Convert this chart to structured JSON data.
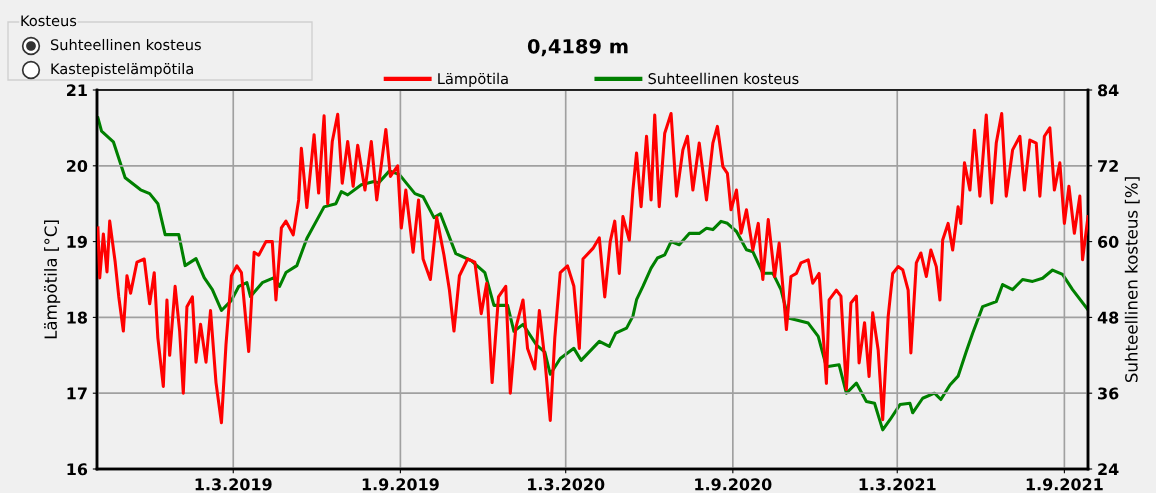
{
  "chart_data": {
    "type": "line",
    "title": "0,4189 m",
    "ylabel": "Lämpötila [°C]",
    "y2label": "Suhteellinen kosteus [%]",
    "annotations": [
      "Kosteus",
      "Suhteellinen kosteus",
      "Kastepistelämpötila"
    ],
    "xlim": [
      "2018-10-02",
      "2021-09-27"
    ],
    "xticks": [
      {
        "value": "2019-03-01",
        "label": "1.3.2019"
      },
      {
        "value": "2019-09-01",
        "label": "1.9.2019"
      },
      {
        "value": "2020-03-01",
        "label": "1.3.2020"
      },
      {
        "value": "2020-09-01",
        "label": "1.9.2020"
      },
      {
        "value": "2021-03-01",
        "label": "1.3.2021"
      },
      {
        "value": "2021-09-01",
        "label": "1.9.2021"
      }
    ],
    "ylim": [
      16,
      21
    ],
    "yticks": [
      16,
      17,
      18,
      19,
      20,
      21
    ],
    "y2lim": [
      24,
      84
    ],
    "y2ticks": [
      24,
      36,
      48,
      60,
      72,
      84
    ],
    "grid": true,
    "legend": "top",
    "marker": "none",
    "line_style": "solid",
    "series": [
      {
        "name": "Lämpötila",
        "color": "#ff0000",
        "x": [
          "2018-10-03",
          "2018-10-05",
          "2018-10-09",
          "2018-10-13",
          "2018-10-16",
          "2018-10-22",
          "2018-10-26",
          "2018-10-31",
          "2018-11-04",
          "2018-11-08",
          "2018-11-15",
          "2018-11-23",
          "2018-11-29",
          "2018-12-04",
          "2018-12-08",
          "2018-12-14",
          "2018-12-18",
          "2018-12-21",
          "2018-12-27",
          "2019-01-01",
          "2019-01-05",
          "2019-01-09",
          "2019-01-15",
          "2019-01-19",
          "2019-01-24",
          "2019-01-30",
          "2019-02-04",
          "2019-02-10",
          "2019-02-16",
          "2019-02-21",
          "2019-02-27",
          "2019-03-05",
          "2019-03-10",
          "2019-03-18",
          "2019-03-24",
          "2019-03-29",
          "2019-04-06",
          "2019-04-13",
          "2019-04-17",
          "2019-04-23",
          "2019-04-28",
          "2019-05-06",
          "2019-05-12",
          "2019-05-15",
          "2019-05-21",
          "2019-05-29",
          "2019-06-03",
          "2019-06-09",
          "2019-06-13",
          "2019-06-18",
          "2019-06-24",
          "2019-06-29",
          "2019-07-05",
          "2019-07-11",
          "2019-07-16",
          "2019-07-24",
          "2019-07-31",
          "2019-08-06",
          "2019-08-16",
          "2019-08-21",
          "2019-08-29",
          "2019-09-02",
          "2019-09-07",
          "2019-09-15",
          "2019-09-21",
          "2019-09-26",
          "2019-10-04",
          "2019-10-11",
          "2019-10-19",
          "2019-10-25",
          "2019-10-30",
          "2019-11-05",
          "2019-11-14",
          "2019-11-22",
          "2019-11-29",
          "2019-12-05",
          "2019-12-11",
          "2019-12-18",
          "2019-12-26",
          "2019-12-31",
          "2020-01-06",
          "2020-01-14",
          "2020-01-19",
          "2020-01-27",
          "2020-02-01",
          "2020-02-07",
          "2020-02-13",
          "2020-02-18",
          "2020-02-24",
          "2020-03-03",
          "2020-03-10",
          "2020-03-16",
          "2020-03-20",
          "2020-03-31",
          "2020-04-07",
          "2020-04-13",
          "2020-04-19",
          "2020-04-24",
          "2020-04-29",
          "2020-05-03",
          "2020-05-10",
          "2020-05-14",
          "2020-05-18",
          "2020-05-23",
          "2020-05-29",
          "2020-06-03",
          "2020-06-07",
          "2020-06-12",
          "2020-06-18",
          "2020-06-25",
          "2020-07-01",
          "2020-07-08",
          "2020-07-13",
          "2020-07-19",
          "2020-07-26",
          "2020-08-03",
          "2020-08-10",
          "2020-08-15",
          "2020-08-21",
          "2020-08-26",
          "2020-08-30",
          "2020-09-05",
          "2020-09-10",
          "2020-09-16",
          "2020-09-23",
          "2020-09-29",
          "2020-10-04",
          "2020-10-10",
          "2020-10-17",
          "2020-10-22",
          "2020-10-30",
          "2020-11-04",
          "2020-11-10",
          "2020-11-15",
          "2020-11-23",
          "2020-11-28",
          "2020-12-05",
          "2020-12-13",
          "2020-12-16",
          "2020-12-24",
          "2020-12-29",
          "2021-01-04",
          "2021-01-09",
          "2021-01-15",
          "2021-01-18",
          "2021-01-24",
          "2021-01-29",
          "2021-02-02",
          "2021-02-08",
          "2021-02-13",
          "2021-02-19",
          "2021-02-24",
          "2021-03-02",
          "2021-03-07",
          "2021-03-13",
          "2021-03-16",
          "2021-03-22",
          "2021-03-27",
          "2021-04-02",
          "2021-04-07",
          "2021-04-13",
          "2021-04-17",
          "2021-04-20",
          "2021-04-26",
          "2021-05-01",
          "2021-05-07",
          "2021-05-10",
          "2021-05-14",
          "2021-05-20",
          "2021-05-25",
          "2021-05-31",
          "2021-06-07",
          "2021-06-13",
          "2021-06-18",
          "2021-06-24",
          "2021-06-29",
          "2021-07-06",
          "2021-07-14",
          "2021-07-19",
          "2021-07-25",
          "2021-08-01",
          "2021-08-05",
          "2021-08-10",
          "2021-08-16",
          "2021-08-21",
          "2021-08-27",
          "2021-09-01",
          "2021-09-06",
          "2021-09-12",
          "2021-09-18",
          "2021-09-21",
          "2021-09-27"
        ],
        "values": [
          19.18,
          18.52,
          19.1,
          18.6,
          19.27,
          18.73,
          18.27,
          17.82,
          18.55,
          18.32,
          18.73,
          18.77,
          18.18,
          18.59,
          17.73,
          17.09,
          18.23,
          17.5,
          18.41,
          17.82,
          17.0,
          18.14,
          18.27,
          17.41,
          17.91,
          17.41,
          18.09,
          17.14,
          16.61,
          17.64,
          18.55,
          18.68,
          18.59,
          17.55,
          18.86,
          18.82,
          19.0,
          19.0,
          18.23,
          19.18,
          19.27,
          19.09,
          19.55,
          20.23,
          19.45,
          20.41,
          19.64,
          20.66,
          19.5,
          20.32,
          20.68,
          19.77,
          20.32,
          19.73,
          20.27,
          19.68,
          20.32,
          19.55,
          20.48,
          19.86,
          20.0,
          19.18,
          19.68,
          18.86,
          19.55,
          18.77,
          18.5,
          19.32,
          18.82,
          18.36,
          17.82,
          18.55,
          18.77,
          18.73,
          18.05,
          18.45,
          17.14,
          18.27,
          18.41,
          17.0,
          17.86,
          18.23,
          17.59,
          17.32,
          18.09,
          17.45,
          16.64,
          17.73,
          18.59,
          18.68,
          18.41,
          17.59,
          18.77,
          18.91,
          19.05,
          18.27,
          19.0,
          19.27,
          18.58,
          19.33,
          19.02,
          19.68,
          20.17,
          19.46,
          20.39,
          19.55,
          20.67,
          19.46,
          20.43,
          20.69,
          19.6,
          20.21,
          20.39,
          19.68,
          20.3,
          19.55,
          20.3,
          20.52,
          19.99,
          19.9,
          19.42,
          19.68,
          19.11,
          19.42,
          18.89,
          19.24,
          18.5,
          19.29,
          18.54,
          18.98,
          17.84,
          18.54,
          18.58,
          18.72,
          18.76,
          18.45,
          18.58,
          17.13,
          18.23,
          18.36,
          18.28,
          17.05,
          18.19,
          18.28,
          17.4,
          17.93,
          17.22,
          18.06,
          17.57,
          16.65,
          18.01,
          18.58,
          18.67,
          18.63,
          18.36,
          17.53,
          18.72,
          18.85,
          18.54,
          18.89,
          18.67,
          18.23,
          19.02,
          19.24,
          18.89,
          19.46,
          19.24,
          20.04,
          19.68,
          20.47,
          19.6,
          20.67,
          19.51,
          20.3,
          20.69,
          19.6,
          20.21,
          20.39,
          19.68,
          20.34,
          20.3,
          19.6,
          20.39,
          20.5,
          19.68,
          20.04,
          19.24,
          19.73,
          19.11,
          19.6,
          18.76,
          19.33
        ]
      },
      {
        "name": "Suhteellinen kosteus",
        "color": "#008000",
        "axis": "y2",
        "x": [
          "2018-10-03",
          "2018-10-07",
          "2018-10-20",
          "2018-11-02",
          "2018-11-19",
          "2018-11-29",
          "2018-12-08",
          "2018-12-16",
          "2018-12-31",
          "2019-01-07",
          "2019-01-19",
          "2019-01-28",
          "2019-02-06",
          "2019-02-16",
          "2019-02-27",
          "2019-03-07",
          "2019-03-16",
          "2019-03-20",
          "2019-04-02",
          "2019-04-15",
          "2019-04-21",
          "2019-04-28",
          "2019-05-10",
          "2019-05-21",
          "2019-06-09",
          "2019-06-22",
          "2019-06-28",
          "2019-07-05",
          "2019-07-20",
          "2019-08-03",
          "2019-08-08",
          "2019-08-20",
          "2019-08-31",
          "2019-09-17",
          "2019-09-26",
          "2019-10-08",
          "2019-10-15",
          "2019-11-01",
          "2019-11-18",
          "2019-12-03",
          "2019-12-13",
          "2019-12-28",
          "2020-01-04",
          "2020-01-14",
          "2020-01-29",
          "2020-02-07",
          "2020-02-13",
          "2020-02-24",
          "2020-03-10",
          "2020-03-18",
          "2020-04-07",
          "2020-04-18",
          "2020-04-25",
          "2020-05-07",
          "2020-05-14",
          "2020-05-18",
          "2020-05-25",
          "2020-06-03",
          "2020-06-10",
          "2020-06-18",
          "2020-06-25",
          "2020-07-04",
          "2020-07-15",
          "2020-07-26",
          "2020-08-03",
          "2020-08-10",
          "2020-08-19",
          "2020-08-26",
          "2020-09-05",
          "2020-09-16",
          "2020-09-23",
          "2020-10-04",
          "2020-10-15",
          "2020-10-24",
          "2020-11-01",
          "2020-11-10",
          "2020-11-23",
          "2020-12-04",
          "2020-12-13",
          "2020-12-27",
          "2021-01-04",
          "2021-01-15",
          "2021-01-26",
          "2021-02-04",
          "2021-02-13",
          "2021-02-21",
          "2021-03-04",
          "2021-03-15",
          "2021-03-18",
          "2021-03-29",
          "2021-04-11",
          "2021-04-18",
          "2021-04-28",
          "2021-05-07",
          "2021-05-16",
          "2021-05-23",
          "2021-06-03",
          "2021-06-18",
          "2021-06-25",
          "2021-07-06",
          "2021-07-17",
          "2021-07-28",
          "2021-08-08",
          "2021-08-19",
          "2021-08-30",
          "2021-09-10",
          "2021-09-27"
        ],
        "values": [
          79.6,
          77.5,
          75.8,
          70.1,
          68.2,
          67.6,
          66.0,
          61.1,
          61.1,
          56.2,
          57.3,
          54.3,
          52.4,
          49.1,
          50.7,
          52.9,
          53.5,
          51.3,
          53.5,
          54.3,
          52.9,
          55.1,
          56.2,
          60.5,
          65.5,
          66.0,
          67.9,
          67.4,
          69.0,
          69.5,
          69.3,
          71.2,
          70.6,
          67.6,
          67.1,
          63.8,
          64.4,
          58.1,
          57.0,
          55.1,
          49.9,
          49.9,
          45.8,
          46.9,
          43.6,
          42.5,
          39.0,
          41.5,
          43.1,
          41.2,
          44.2,
          43.4,
          45.5,
          46.3,
          48.2,
          50.8,
          52.9,
          55.8,
          57.4,
          57.9,
          60.0,
          59.5,
          61.3,
          61.3,
          62.1,
          61.9,
          63.2,
          62.9,
          61.6,
          58.7,
          58.4,
          55.0,
          55.0,
          52.4,
          47.9,
          47.6,
          47.1,
          45.0,
          40.2,
          40.5,
          36.0,
          37.6,
          34.7,
          34.4,
          30.2,
          31.8,
          34.2,
          34.4,
          32.9,
          35.2,
          36.0,
          35.0,
          37.3,
          38.7,
          42.6,
          45.5,
          49.7,
          50.5,
          53.2,
          52.4,
          54.0,
          53.7,
          54.2,
          55.5,
          54.8,
          52.4,
          49.2
        ]
      }
    ]
  }
}
